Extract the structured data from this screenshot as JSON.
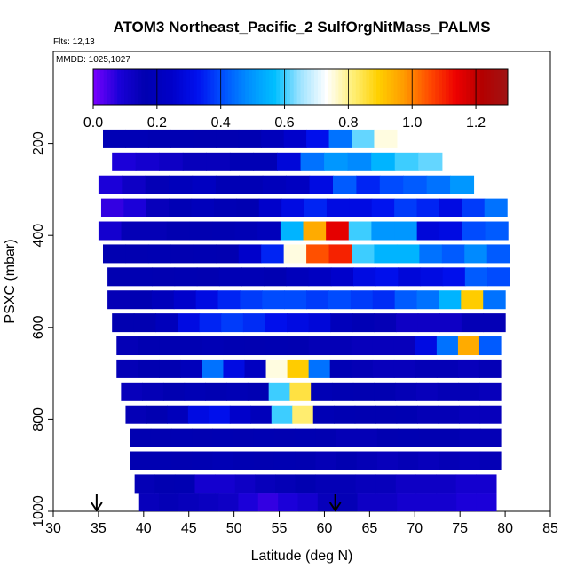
{
  "chart_data": {
    "type": "heatmap",
    "title": "ATOM3 Northeast_Pacific_2 SulfOrgNitMass_PALMS",
    "flights": "Flts: 12,13",
    "mmdd": "MMDD: 1025,1027",
    "xlabel": "Latitude (deg N)",
    "ylabel": "PSXC (mbar)",
    "xlim": [
      30,
      85
    ],
    "ylim": [
      1000,
      0
    ],
    "x_ticks": [
      "30",
      "35",
      "40",
      "45",
      "50",
      "55",
      "60",
      "65",
      "70",
      "75",
      "80",
      "85"
    ],
    "y_ticks": [
      "200",
      "400",
      "600",
      "800",
      "1000"
    ],
    "colorbar": {
      "range": [
        0,
        1.3
      ],
      "ticks": [
        "0.0",
        "0.2",
        "0.4",
        "0.6",
        "0.8",
        "1.0",
        "1.2"
      ],
      "colors": [
        "#7a00ff",
        "#1a00d8",
        "#0000b0",
        "#0000c8",
        "#0010ee",
        "#0050ff",
        "#0090ff",
        "#00bfff",
        "#9fe3ff",
        "#ffffff",
        "#fff07a",
        "#ffd000",
        "#ff9a00",
        "#ff4a00",
        "#ee0000",
        "#b40000",
        "#a01414"
      ]
    },
    "markers": [
      {
        "label": "arrow",
        "x": 34.8,
        "y": 1000
      },
      {
        "label": "arrow",
        "x": 61.2,
        "y": 1000
      }
    ],
    "rows": [
      {
        "p": 190,
        "x0": 35.5,
        "x1": 68.0,
        "vals": [
          0.18,
          0.18,
          0.17,
          0.17,
          0.16,
          0.16,
          0.17,
          0.2,
          0.25,
          0.32,
          0.45,
          0.62,
          0.75
        ]
      },
      {
        "p": 240,
        "x0": 36.5,
        "x1": 73.0,
        "vals": [
          0.08,
          0.1,
          0.12,
          0.14,
          0.14,
          0.18,
          0.18,
          0.28,
          0.45,
          0.5,
          0.48,
          0.55,
          0.6,
          0.62
        ]
      },
      {
        "p": 290,
        "x0": 35.0,
        "x1": 76.5,
        "vals": [
          0.08,
          0.12,
          0.15,
          0.2,
          0.22,
          0.18,
          0.18,
          0.2,
          0.22,
          0.3,
          0.42,
          0.35,
          0.4,
          0.42,
          0.45,
          0.5
        ]
      },
      {
        "p": 340,
        "x0": 35.3,
        "x1": 80.2,
        "vals": [
          0.06,
          0.08,
          0.14,
          0.18,
          0.2,
          0.18,
          0.17,
          0.25,
          0.3,
          0.35,
          0.3,
          0.3,
          0.33,
          0.38,
          0.35,
          0.3,
          0.38,
          0.45
        ]
      },
      {
        "p": 390,
        "x0": 35.0,
        "x1": 80.3,
        "vals": [
          0.1,
          0.15,
          0.15,
          0.16,
          0.16,
          0.17,
          0.18,
          0.2,
          0.55,
          0.95,
          1.15,
          0.6,
          0.5,
          0.5,
          0.28,
          0.3,
          0.4,
          0.42
        ]
      },
      {
        "p": 440,
        "x0": 35.5,
        "x1": 80.5,
        "vals": [
          0.16,
          0.16,
          0.17,
          0.16,
          0.17,
          0.16,
          0.25,
          0.35,
          0.75,
          1.05,
          1.1,
          0.6,
          0.55,
          0.55,
          0.45,
          0.42,
          0.48,
          0.42
        ]
      },
      {
        "p": 490,
        "x0": 36.0,
        "x1": 80.5,
        "vals": [
          0.16,
          0.17,
          0.16,
          0.17,
          0.16,
          0.18,
          0.18,
          0.17,
          0.2,
          0.22,
          0.25,
          0.3,
          0.32,
          0.28,
          0.3,
          0.32,
          0.42,
          0.4
        ]
      },
      {
        "p": 540,
        "x0": 36.0,
        "x1": 80.0,
        "vals": [
          0.15,
          0.17,
          0.2,
          0.25,
          0.3,
          0.35,
          0.38,
          0.4,
          0.4,
          0.38,
          0.4,
          0.38,
          0.36,
          0.42,
          0.45,
          0.55,
          0.9,
          0.45
        ]
      },
      {
        "p": 590,
        "x0": 36.5,
        "x1": 80.0,
        "vals": [
          0.16,
          0.16,
          0.2,
          0.3,
          0.35,
          0.38,
          0.36,
          0.32,
          0.3,
          0.28,
          0.2,
          0.18,
          0.15,
          0.12,
          0.12,
          0.12,
          0.15,
          0.15
        ]
      },
      {
        "p": 640,
        "x0": 37.0,
        "x1": 79.5,
        "vals": [
          0.15,
          0.16,
          0.16,
          0.17,
          0.18,
          0.17,
          0.16,
          0.17,
          0.16,
          0.15,
          0.15,
          0.14,
          0.14,
          0.14,
          0.3,
          0.45,
          0.95,
          0.42
        ]
      },
      {
        "p": 690,
        "x0": 37.0,
        "x1": 79.5,
        "vals": [
          0.15,
          0.16,
          0.16,
          0.2,
          0.45,
          0.3,
          0.22,
          0.75,
          0.9,
          0.45,
          0.18,
          0.15,
          0.14,
          0.14,
          0.15,
          0.15,
          0.14,
          0.15
        ]
      },
      {
        "p": 740,
        "x0": 37.5,
        "x1": 79.5,
        "vals": [
          0.14,
          0.15,
          0.16,
          0.18,
          0.17,
          0.18,
          0.17,
          0.6,
          0.85,
          0.18,
          0.17,
          0.16,
          0.16,
          0.15,
          0.14,
          0.15,
          0.15,
          0.14
        ]
      },
      {
        "p": 790,
        "x0": 38.0,
        "x1": 79.5,
        "vals": [
          0.15,
          0.16,
          0.2,
          0.3,
          0.32,
          0.25,
          0.2,
          0.6,
          0.82,
          0.18,
          0.17,
          0.16,
          0.16,
          0.17,
          0.15,
          0.15,
          0.14,
          0.14
        ]
      },
      {
        "p": 840,
        "x0": 38.5,
        "x1": 79.5,
        "vals": [
          0.16,
          0.16,
          0.17,
          0.16,
          0.17,
          0.16,
          0.17,
          0.16,
          0.17,
          0.16,
          0.15,
          0.15,
          0.16,
          0.17,
          0.16,
          0.16,
          0.15,
          0.15
        ]
      },
      {
        "p": 890,
        "x0": 38.5,
        "x1": 79.5,
        "vals": [
          0.16,
          0.17,
          0.16,
          0.17,
          0.18,
          0.17,
          0.16,
          0.17,
          0.16,
          0.15,
          0.16,
          0.15,
          0.14,
          0.15,
          0.14,
          0.15,
          0.14,
          0.15
        ]
      },
      {
        "p": 940,
        "x0": 39.0,
        "x1": 79.0,
        "vals": [
          0.15,
          0.16,
          0.17,
          0.1,
          0.1,
          0.12,
          0.14,
          0.15,
          0.16,
          0.15,
          0.15,
          0.14,
          0.14,
          0.12,
          0.12,
          0.12,
          0.1,
          0.1
        ]
      },
      {
        "p": 980,
        "x0": 39.5,
        "x1": 79.0,
        "vals": [
          0.14,
          0.15,
          0.14,
          0.13,
          0.12,
          0.08,
          0.06,
          0.08,
          0.1,
          0.14,
          0.15,
          0.12,
          0.12,
          0.1,
          0.1,
          0.1,
          0.08,
          0.08
        ]
      }
    ]
  }
}
